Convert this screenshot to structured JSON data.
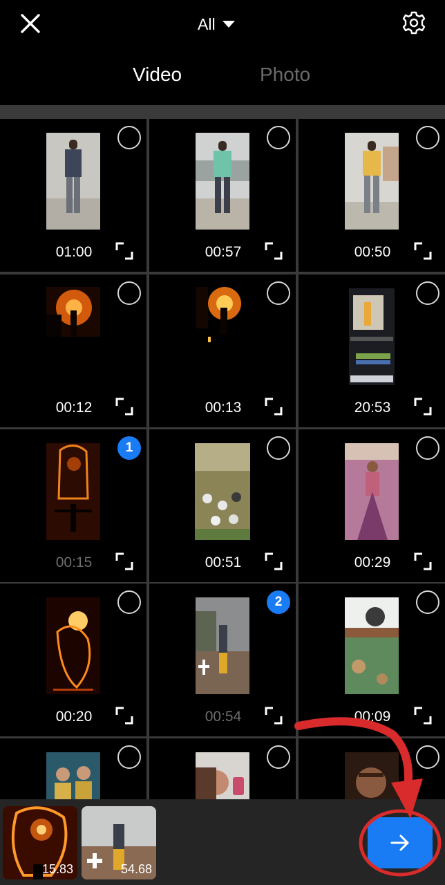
{
  "topbar": {
    "filter_label": "All"
  },
  "tabs": [
    {
      "label": "Video",
      "active": true
    },
    {
      "label": "Photo",
      "active": false
    }
  ],
  "grid": {
    "items": [
      {
        "duration": "01:00",
        "selected": null,
        "dim": false
      },
      {
        "duration": "00:57",
        "selected": null,
        "dim": false
      },
      {
        "duration": "00:50",
        "selected": null,
        "dim": false
      },
      {
        "duration": "00:12",
        "selected": null,
        "dim": false
      },
      {
        "duration": "00:13",
        "selected": null,
        "dim": false
      },
      {
        "duration": "20:53",
        "selected": null,
        "dim": false
      },
      {
        "duration": "00:15",
        "selected": "1",
        "dim": true
      },
      {
        "duration": "00:51",
        "selected": null,
        "dim": false
      },
      {
        "duration": "00:29",
        "selected": null,
        "dim": false
      },
      {
        "duration": "00:20",
        "selected": null,
        "dim": false
      },
      {
        "duration": "00:54",
        "selected": "2",
        "dim": true
      },
      {
        "duration": "00:09",
        "selected": null,
        "dim": false
      },
      {
        "duration": "",
        "selected": null,
        "dim": false
      },
      {
        "duration": "",
        "selected": null,
        "dim": false
      },
      {
        "duration": "",
        "selected": null,
        "dim": false
      }
    ]
  },
  "tray": {
    "items": [
      {
        "duration": "15.83"
      },
      {
        "duration": "54.68"
      }
    ]
  },
  "colors": {
    "accent": "#1a7cf5",
    "annotation": "#d92b2b",
    "tray_background": "#252525",
    "grid_divider": "#3a3a3a"
  },
  "icons": {
    "close": "close-icon",
    "filter": "caret-down-icon",
    "settings": "gear-icon",
    "expand": "expand-icon",
    "next": "arrow-right-icon"
  }
}
